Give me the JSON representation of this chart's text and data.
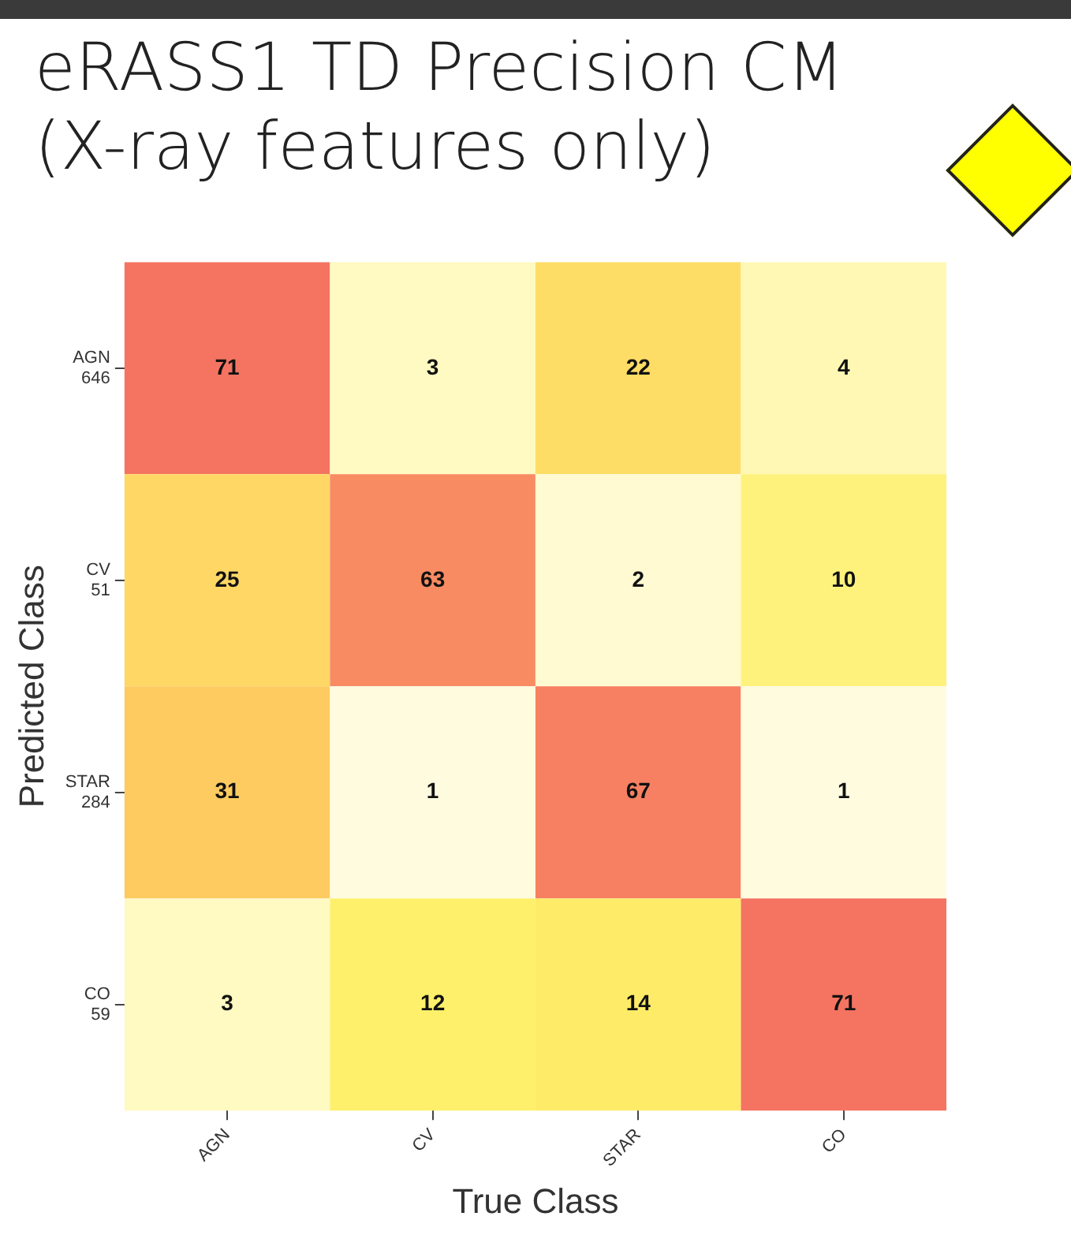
{
  "chart_data": {
    "type": "heatmap",
    "title": "eRASS1 TD Precision CM\n(X-ray features only)",
    "xlabel": "True Class",
    "ylabel": "Predicted Class",
    "categories": [
      "AGN",
      "CV",
      "STAR",
      "CO"
    ],
    "y_categories": [
      "AGN\n646",
      "CV\n51",
      "STAR\n284",
      "CO\n59"
    ],
    "cells": [
      [
        71,
        3,
        22,
        4
      ],
      [
        25,
        63,
        2,
        10
      ],
      [
        31,
        1,
        67,
        1
      ],
      [
        3,
        12,
        14,
        71
      ]
    ],
    "data_labels": true
  }
}
